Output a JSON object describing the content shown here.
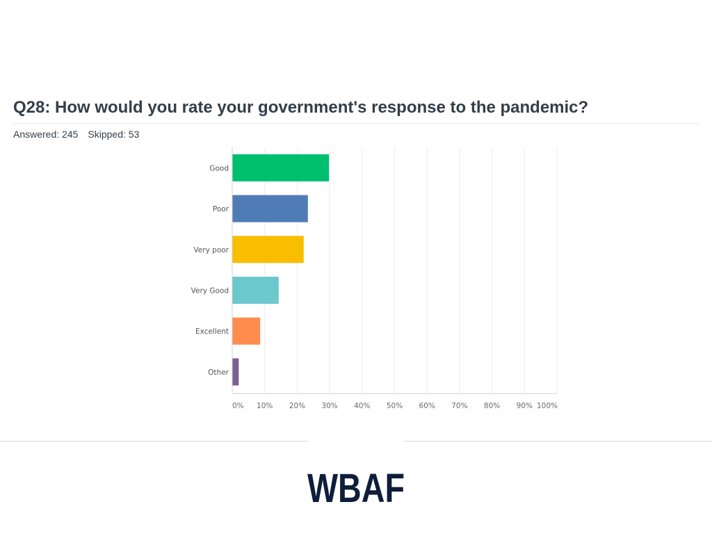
{
  "question": {
    "title": "Q28: How would you rate your government's response to the pandemic?",
    "answered_label": "Answered: 245",
    "skipped_label": "Skipped: 53"
  },
  "logo": {
    "text": "WBAF",
    "color": "#0e1e3a"
  },
  "chart_data": {
    "type": "bar",
    "orientation": "horizontal",
    "title": "",
    "xlabel": "",
    "ylabel": "",
    "xlim": [
      0,
      100
    ],
    "grid": true,
    "legend": "none",
    "categories": [
      "Good",
      "Poor",
      "Very poor",
      "Very Good",
      "Excellent",
      "Other"
    ],
    "values": [
      29.8,
      23.3,
      22.0,
      14.3,
      8.6,
      2.0
    ],
    "colors": [
      "#00bf6f",
      "#507cb6",
      "#f9be00",
      "#6bc8cd",
      "#ff8b4f",
      "#7d5e90"
    ],
    "tick_labels": [
      "0%",
      "10%",
      "20%",
      "30%",
      "40%",
      "50%",
      "60%",
      "70%",
      "80%",
      "90%",
      "100%"
    ]
  }
}
